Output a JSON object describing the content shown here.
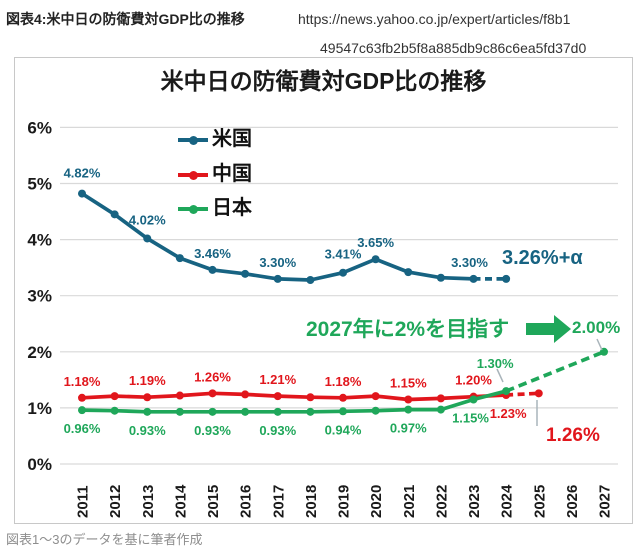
{
  "header": {
    "caption": "図表4:米中日の防衛費対GDP比の推移",
    "url_line1": "https://news.yahoo.co.jp/expert/articles/f8b1",
    "url_line2": "49547c63fb2b5f8a885db9c86c6ea5fd37d0"
  },
  "footer": {
    "note": "図表1〜3のデータを基に筆者作成"
  },
  "annotations": {
    "us_future": "3.26%+α",
    "target": "2027年に2%を目指す",
    "target_value": "2.00%",
    "china_future": "1.26%"
  },
  "chart_data": {
    "type": "line",
    "title": "米中日の防衛費対GDP比の推移",
    "xlabel": "",
    "ylabel": "",
    "ylim": [
      0,
      6
    ],
    "grid": true,
    "grid_color": "#d9d9d9",
    "leader_color": "#a9b4ba",
    "legend_position": "upper-left-inside",
    "x": [
      2011,
      2012,
      2013,
      2014,
      2015,
      2016,
      2017,
      2018,
      2019,
      2020,
      2021,
      2022,
      2023,
      2024,
      2025,
      2026,
      2027
    ],
    "y_ticks": [
      {
        "label": "0%",
        "value": 0
      },
      {
        "label": "1%",
        "value": 1
      },
      {
        "label": "2%",
        "value": 2
      },
      {
        "label": "3%",
        "value": 3
      },
      {
        "label": "4%",
        "value": 4
      },
      {
        "label": "5%",
        "value": 5
      },
      {
        "label": "6%",
        "value": 6
      }
    ],
    "series": [
      {
        "key": "us",
        "name": "米国",
        "color": "#176382",
        "years": [
          2011,
          2012,
          2013,
          2014,
          2015,
          2016,
          2017,
          2018,
          2019,
          2020,
          2021,
          2022,
          2023,
          2024
        ],
        "values": [
          4.82,
          4.45,
          4.02,
          3.67,
          3.46,
          3.39,
          3.3,
          3.28,
          3.41,
          3.65,
          3.42,
          3.32,
          3.3,
          3.3
        ],
        "dashed_from_year": 2023,
        "dash": "7 4.5",
        "point_labels": [
          {
            "year": 2011,
            "text": "4.82%",
            "pos": "above",
            "dy": -4
          },
          {
            "year": 2013,
            "text": "4.02%",
            "pos": "above",
            "dy": -2
          },
          {
            "year": 2015,
            "text": "3.46%",
            "pos": "above"
          },
          {
            "year": 2017,
            "text": "3.30%",
            "pos": "above"
          },
          {
            "year": 2019,
            "text": "3.41%",
            "pos": "above",
            "dy": -2
          },
          {
            "year": 2020,
            "text": "3.65%",
            "pos": "above"
          },
          {
            "year": 2023,
            "text": "3.30%",
            "pos": "above",
            "dx": -4
          }
        ]
      },
      {
        "key": "china",
        "name": "中国",
        "color": "#E1161C",
        "years": [
          2011,
          2012,
          2013,
          2014,
          2015,
          2016,
          2017,
          2018,
          2019,
          2020,
          2021,
          2022,
          2023,
          2024,
          2025
        ],
        "values": [
          1.18,
          1.21,
          1.19,
          1.22,
          1.26,
          1.24,
          1.21,
          1.19,
          1.18,
          1.21,
          1.15,
          1.17,
          1.2,
          1.23,
          1.26
        ],
        "dashed_from_year": 2024,
        "dash": "7 4.5",
        "point_labels": [
          {
            "year": 2011,
            "text": "1.18%",
            "pos": "above"
          },
          {
            "year": 2013,
            "text": "1.19%",
            "pos": "above"
          },
          {
            "year": 2015,
            "text": "1.26%",
            "pos": "above"
          },
          {
            "year": 2017,
            "text": "1.21%",
            "pos": "above"
          },
          {
            "year": 2019,
            "text": "1.18%",
            "pos": "above"
          },
          {
            "year": 2021,
            "text": "1.15%",
            "pos": "above"
          },
          {
            "year": 2023,
            "text": "1.20%",
            "pos": "above"
          },
          {
            "year": 2024,
            "text": "1.23%",
            "pos": "below",
            "dx": 2
          }
        ]
      },
      {
        "key": "japan",
        "name": "日本",
        "color": "#1FA75A",
        "years": [
          2011,
          2012,
          2013,
          2014,
          2015,
          2016,
          2017,
          2018,
          2019,
          2020,
          2021,
          2022,
          2023,
          2024,
          2027
        ],
        "values": [
          0.96,
          0.95,
          0.93,
          0.93,
          0.93,
          0.93,
          0.93,
          0.93,
          0.94,
          0.95,
          0.97,
          0.97,
          1.15,
          1.3,
          2.0
        ],
        "dashed_from_year": 2024,
        "dash": "8.5 5",
        "point_labels": [
          {
            "year": 2011,
            "text": "0.96%",
            "pos": "below"
          },
          {
            "year": 2013,
            "text": "0.93%",
            "pos": "below"
          },
          {
            "year": 2015,
            "text": "0.93%",
            "pos": "below"
          },
          {
            "year": 2017,
            "text": "0.93%",
            "pos": "below"
          },
          {
            "year": 2019,
            "text": "0.94%",
            "pos": "below"
          },
          {
            "year": 2021,
            "text": "0.97%",
            "pos": "below"
          },
          {
            "year": 2023,
            "text": "1.15%",
            "pos": "below",
            "dx": -3
          },
          {
            "year": 2024,
            "text": "1.30%",
            "pos": "above",
            "dx": -11,
            "dy": -11
          }
        ]
      }
    ]
  }
}
